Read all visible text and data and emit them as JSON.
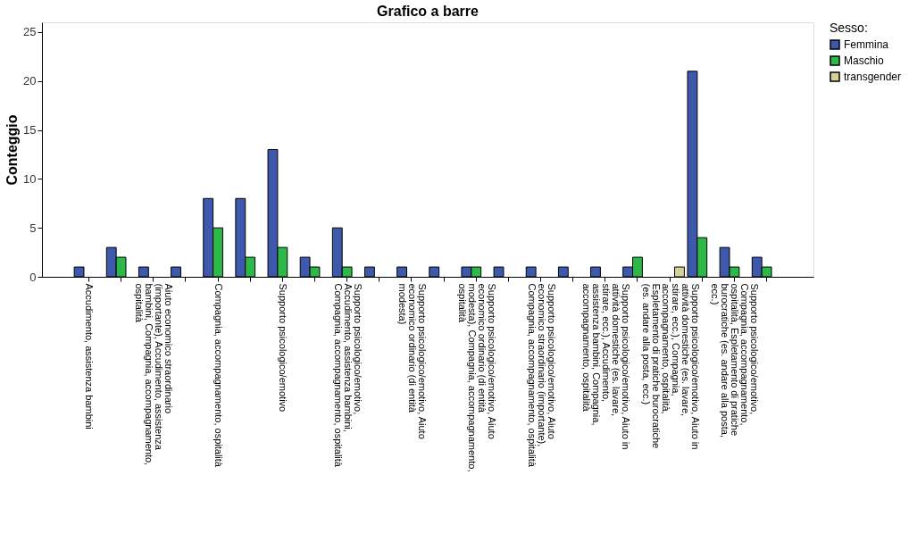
{
  "chart_data": {
    "type": "bar",
    "title": "Grafico a barre",
    "ylabel": "Conteggio",
    "legend_title": "Sesso:",
    "legend": "top right",
    "grid": false,
    "categories": [
      "Accudimento, assistenza bambini",
      null,
      "Aiuto economico straordinario (importante), Accudimento, assistenza bambini, Compagnia, accompagnamento, ospitalità",
      null,
      "Compagnia, accompagnamento, ospitalità",
      null,
      "Supporto psicologico/emotivo",
      null,
      "Supporto psicologico/emotivo, Accudimento, assistenza bambini, Compagnia, accompagnamento, ospitalità",
      null,
      "Supporto psicologico/emotivo, Aiuto economico ordinario (di entità modesta)",
      null,
      "Supporto psicologico/emotivo, Aiuto economico ordinario (di entità modesta), Compagnia, accompagnamento, ospitalità",
      null,
      "Supporto psicologico/emotivo, Aiuto economico straordinario (importante), Compagnia, accompagnamento, ospitalità",
      null,
      "Supporto psicologico/emotivo, Aiuto in attività domestiche (es. lavare, stirare, ecc.), Accudimento, assistenza bambini, Compagnia, accompagnamento, ospitalità",
      null,
      "Supporto psicologico/emotivo, Aiuto in attività domestiche (es. lavare, stirare, ecc.), Compagnia, accompagnamento, ospitalità, Espletamento di pratiche burocratiche (es. andare alla posta, ecc.)",
      null,
      "Supporto psicologico/emotivo, Compagnia, accompagnamento, ospitalità, Espletamento di pratiche burocratiche (es. andare alla posta, ecc.)",
      null
    ],
    "series": [
      {
        "name": "Femmina",
        "color": "#3e58ac",
        "values": [
          1,
          3,
          1,
          1,
          8,
          8,
          13,
          2,
          5,
          1,
          1,
          1,
          1,
          1,
          1,
          1,
          1,
          1,
          null,
          21,
          3,
          2
        ]
      },
      {
        "name": "Maschio",
        "color": "#2db84a",
        "values": [
          null,
          2,
          null,
          null,
          5,
          2,
          3,
          1,
          1,
          null,
          null,
          null,
          1,
          null,
          null,
          null,
          null,
          2,
          null,
          4,
          1,
          1
        ]
      },
      {
        "name": "transgender",
        "color": "#d6d09a",
        "values": [
          null,
          null,
          null,
          null,
          null,
          null,
          null,
          null,
          null,
          null,
          null,
          null,
          null,
          null,
          null,
          null,
          null,
          null,
          1,
          null,
          null,
          null
        ]
      }
    ],
    "ylim": [
      0,
      26
    ],
    "yticks": [
      0,
      5,
      10,
      15,
      20,
      25
    ]
  }
}
